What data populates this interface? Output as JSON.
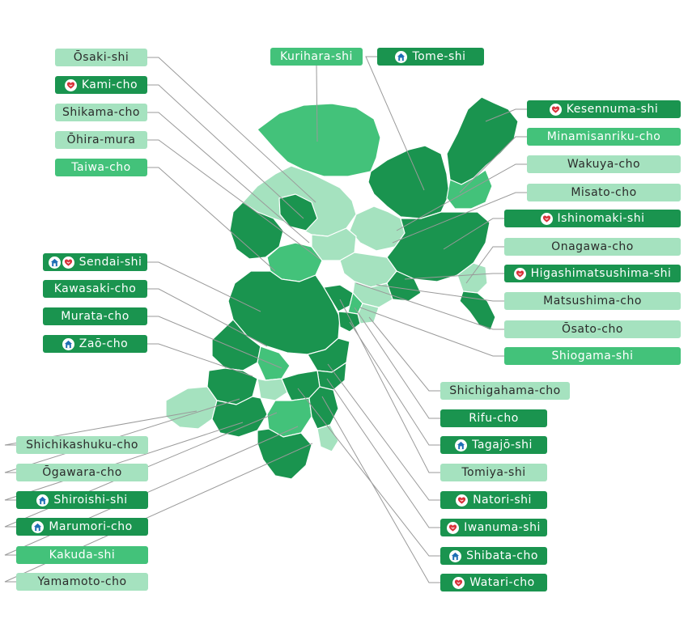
{
  "colors": {
    "dark": "#1a944f",
    "mid": "#43c27a",
    "light": "#a5e2bf",
    "leader_line": "#9a9a9a",
    "house_icon": "#1f6fb5",
    "heart_icon": "#d8323a"
  },
  "legend_icons": {
    "house": "house-icon",
    "heart": "heart-hands-icon"
  },
  "municipalities": [
    {
      "id": "osaki-shi",
      "label": "Ōsaki-shi",
      "shade": "light",
      "icons": []
    },
    {
      "id": "kami-cho",
      "label": "Kami-cho",
      "shade": "dark",
      "icons": [
        "heart"
      ]
    },
    {
      "id": "shikama-cho",
      "label": "Shikama-cho",
      "shade": "light",
      "icons": []
    },
    {
      "id": "ohira-mura",
      "label": "Ōhira-mura",
      "shade": "light",
      "icons": []
    },
    {
      "id": "taiwa-cho",
      "label": "Taiwa-cho",
      "shade": "mid",
      "icons": []
    },
    {
      "id": "kurihara-shi",
      "label": "Kurihara-shi",
      "shade": "mid",
      "icons": []
    },
    {
      "id": "tome-shi",
      "label": "Tome-shi",
      "shade": "dark",
      "icons": [
        "house"
      ]
    },
    {
      "id": "kesennuma-shi",
      "label": "Kesennuma-shi",
      "shade": "dark",
      "icons": [
        "heart"
      ]
    },
    {
      "id": "minamisanriku-cho",
      "label": "Minamisanriku-cho",
      "shade": "mid",
      "icons": []
    },
    {
      "id": "wakuya-cho",
      "label": "Wakuya-cho",
      "shade": "light",
      "icons": []
    },
    {
      "id": "misato-cho",
      "label": "Misato-cho",
      "shade": "light",
      "icons": []
    },
    {
      "id": "ishinomaki-shi",
      "label": "Ishinomaki-shi",
      "shade": "dark",
      "icons": [
        "heart"
      ]
    },
    {
      "id": "onagawa-cho",
      "label": "Onagawa-cho",
      "shade": "light",
      "icons": []
    },
    {
      "id": "higashimatsushima-shi",
      "label": "Higashimatsushima-shi",
      "shade": "dark",
      "icons": [
        "heart"
      ]
    },
    {
      "id": "matsushima-cho",
      "label": "Matsushima-cho",
      "shade": "light",
      "icons": []
    },
    {
      "id": "osato-cho",
      "label": "Ōsato-cho",
      "shade": "light",
      "icons": []
    },
    {
      "id": "shiogama-shi",
      "label": "Shiogama-shi",
      "shade": "mid",
      "icons": []
    },
    {
      "id": "sendai-shi",
      "label": "Sendai-shi",
      "shade": "dark",
      "icons": [
        "house",
        "heart"
      ]
    },
    {
      "id": "kawasaki-cho",
      "label": "Kawasaki-cho",
      "shade": "dark",
      "icons": []
    },
    {
      "id": "murata-cho",
      "label": "Murata-cho",
      "shade": "dark",
      "icons": []
    },
    {
      "id": "zao-cho",
      "label": "Zaō-cho",
      "shade": "dark",
      "icons": [
        "house"
      ]
    },
    {
      "id": "shichikashuku-cho",
      "label": "Shichikashuku-cho",
      "shade": "light",
      "icons": []
    },
    {
      "id": "ogawara-cho",
      "label": "Ōgawara-cho",
      "shade": "light",
      "icons": []
    },
    {
      "id": "shiroishi-shi",
      "label": "Shiroishi-shi",
      "shade": "dark",
      "icons": [
        "house"
      ]
    },
    {
      "id": "marumori-cho",
      "label": "Marumori-cho",
      "shade": "dark",
      "icons": [
        "house"
      ]
    },
    {
      "id": "kakuda-shi",
      "label": "Kakuda-shi",
      "shade": "mid",
      "icons": []
    },
    {
      "id": "yamamoto-cho",
      "label": "Yamamoto-cho",
      "shade": "light",
      "icons": []
    },
    {
      "id": "shichigahama-cho",
      "label": "Shichigahama-cho",
      "shade": "light",
      "icons": []
    },
    {
      "id": "rifu-cho",
      "label": "Rifu-cho",
      "shade": "dark",
      "icons": []
    },
    {
      "id": "tagajo-shi",
      "label": "Tagajō-shi",
      "shade": "dark",
      "icons": [
        "house"
      ]
    },
    {
      "id": "tomiya-shi",
      "label": "Tomiya-shi",
      "shade": "light",
      "icons": []
    },
    {
      "id": "natori-shi",
      "label": "Natori-shi",
      "shade": "dark",
      "icons": [
        "heart"
      ]
    },
    {
      "id": "iwanuma-shi",
      "label": "Iwanuma-shi",
      "shade": "dark",
      "icons": [
        "heart"
      ]
    },
    {
      "id": "shibata-cho",
      "label": "Shibata-cho",
      "shade": "dark",
      "icons": [
        "house"
      ]
    },
    {
      "id": "watari-cho",
      "label": "Watari-cho",
      "shade": "dark",
      "icons": [
        "heart"
      ]
    }
  ]
}
